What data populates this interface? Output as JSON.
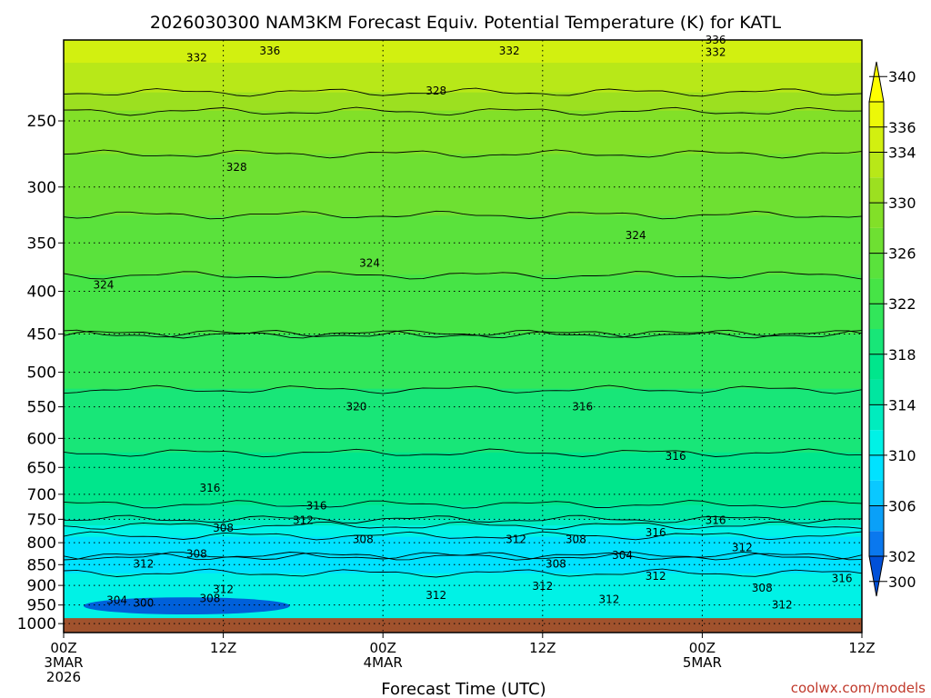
{
  "chart_data": {
    "type": "heatmap",
    "title": "2026030300 NAM3KM Forecast Equiv. Potential Temperature (K) for KATL",
    "xlabel": "Forecast Time (UTC)",
    "ylabel": "",
    "x_range_hours": [
      0,
      60
    ],
    "x_ticks": [
      {
        "hour": 0,
        "lines": [
          "00Z",
          "3MAR",
          "2026"
        ]
      },
      {
        "hour": 12,
        "lines": [
          "12Z"
        ]
      },
      {
        "hour": 24,
        "lines": [
          "00Z",
          "4MAR"
        ]
      },
      {
        "hour": 36,
        "lines": [
          "12Z"
        ]
      },
      {
        "hour": 48,
        "lines": [
          "00Z",
          "5MAR"
        ]
      },
      {
        "hour": 60,
        "lines": [
          "12Z"
        ]
      }
    ],
    "y_axis": {
      "scale": "log-pressure",
      "units": "hPa",
      "range": [
        1025,
        200
      ],
      "reversed": true
    },
    "y_ticks": [
      250,
      300,
      350,
      400,
      450,
      500,
      550,
      600,
      650,
      700,
      750,
      800,
      850,
      900,
      950,
      1000
    ],
    "grid": true,
    "ground_level_hpa": 985,
    "ground_color": "#a0522d",
    "colorbar": {
      "placement": "right",
      "levels": [
        300,
        302,
        304,
        306,
        308,
        310,
        312,
        314,
        316,
        318,
        320,
        322,
        324,
        326,
        328,
        330,
        332,
        334,
        336,
        338,
        340
      ],
      "labels": [
        300,
        302,
        306,
        310,
        314,
        318,
        322,
        326,
        330,
        334,
        336,
        340
      ],
      "colors": [
        "#0050d8",
        "#0a78ee",
        "#0aa0f8",
        "#0ac8ff",
        "#00e2ff",
        "#00f2e6",
        "#00ecbe",
        "#00e6a0",
        "#00e68c",
        "#18e678",
        "#32e65a",
        "#46e446",
        "#5ae23c",
        "#6ee032",
        "#82e028",
        "#9ce020",
        "#b8e818",
        "#d2f010",
        "#ecf808",
        "#ffff00"
      ]
    },
    "contour_interval": 2,
    "profile": [
      {
        "p": 225,
        "theta": 333
      },
      {
        "p": 250,
        "theta": 329
      },
      {
        "p": 300,
        "theta": 327
      },
      {
        "p": 350,
        "theta": 325
      },
      {
        "p": 400,
        "theta": 323.5
      },
      {
        "p": 450,
        "theta": 322
      },
      {
        "p": 500,
        "theta": 320.5
      },
      {
        "p": 550,
        "theta": 319.5
      },
      {
        "p": 600,
        "theta": 318.5
      },
      {
        "p": 650,
        "theta": 317.5
      },
      {
        "p": 700,
        "theta": 316.5
      },
      {
        "p": 740,
        "theta": 315.5
      },
      {
        "p": 770,
        "theta": 311
      },
      {
        "p": 800,
        "theta": 309
      },
      {
        "p": 830,
        "theta": 308
      },
      {
        "p": 850,
        "theta": 309
      },
      {
        "p": 880,
        "theta": 310.5
      },
      {
        "p": 920,
        "theta": 311
      },
      {
        "p": 950,
        "theta": 310.5
      },
      {
        "p": 985,
        "theta": 310.5
      }
    ],
    "cold_pool": {
      "hour_range": [
        1.5,
        17
      ],
      "pressure_range": [
        930,
        975
      ],
      "theta": 300
    },
    "annotations": [
      {
        "text": "336",
        "hour": 15.5,
        "p": 206
      },
      {
        "text": "336",
        "hour": 49,
        "p": 200
      },
      {
        "text": "332",
        "hour": 10,
        "p": 210
      },
      {
        "text": "332",
        "hour": 33.5,
        "p": 206
      },
      {
        "text": "332",
        "hour": 49,
        "p": 207
      },
      {
        "text": "328",
        "hour": 28,
        "p": 230
      },
      {
        "text": "328",
        "hour": 13,
        "p": 284
      },
      {
        "text": "324",
        "hour": 23,
        "p": 370
      },
      {
        "text": "324",
        "hour": 43,
        "p": 343
      },
      {
        "text": "324",
        "hour": 3,
        "p": 393
      },
      {
        "text": "320",
        "hour": 22,
        "p": 550
      },
      {
        "text": "316",
        "hour": 39,
        "p": 550
      },
      {
        "text": "316",
        "hour": 46,
        "p": 630
      },
      {
        "text": "316",
        "hour": 11,
        "p": 688
      },
      {
        "text": "316",
        "hour": 19,
        "p": 723
      },
      {
        "text": "316",
        "hour": 49,
        "p": 752
      },
      {
        "text": "316",
        "hour": 44.5,
        "p": 778
      },
      {
        "text": "316",
        "hour": 58.5,
        "p": 883
      },
      {
        "text": "312",
        "hour": 18,
        "p": 752
      },
      {
        "text": "312",
        "hour": 34,
        "p": 793
      },
      {
        "text": "312",
        "hour": 51,
        "p": 811
      },
      {
        "text": "312",
        "hour": 6,
        "p": 848
      },
      {
        "text": "312",
        "hour": 44.5,
        "p": 878
      },
      {
        "text": "312",
        "hour": 36,
        "p": 902
      },
      {
        "text": "312",
        "hour": 12,
        "p": 910
      },
      {
        "text": "312",
        "hour": 28,
        "p": 925
      },
      {
        "text": "312",
        "hour": 41,
        "p": 935
      },
      {
        "text": "312",
        "hour": 54,
        "p": 950
      },
      {
        "text": "308",
        "hour": 12,
        "p": 768
      },
      {
        "text": "308",
        "hour": 22.5,
        "p": 793
      },
      {
        "text": "308",
        "hour": 38.5,
        "p": 793
      },
      {
        "text": "308",
        "hour": 10,
        "p": 825
      },
      {
        "text": "308",
        "hour": 37,
        "p": 848
      },
      {
        "text": "308",
        "hour": 52.5,
        "p": 907
      },
      {
        "text": "308",
        "hour": 11,
        "p": 933
      },
      {
        "text": "304",
        "hour": 42,
        "p": 828
      },
      {
        "text": "304",
        "hour": 4,
        "p": 938
      },
      {
        "text": "300",
        "hour": 6,
        "p": 945
      }
    ],
    "credit": "coolwx.com/models"
  }
}
